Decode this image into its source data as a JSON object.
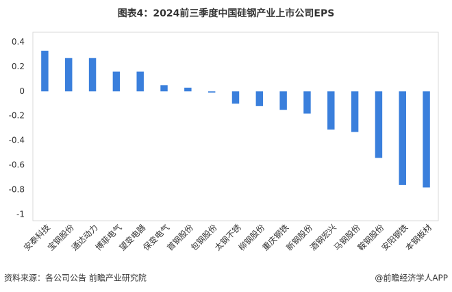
{
  "chart_data": {
    "type": "bar",
    "title": "图表4：2024前三季度中国硅钢产业上市公司EPS",
    "categories": [
      "安泰科技",
      "宝钢股份",
      "通达动力",
      "博菲电气",
      "望变电器",
      "保变电气",
      "首钢股份",
      "包钢股份",
      "太钢不锈",
      "柳钢股份",
      "重庆钢铁",
      "新钢股份",
      "酒钢宏兴",
      "马钢股份",
      "鞍钢股份",
      "安阳钢铁",
      "本钢板材"
    ],
    "values": [
      0.33,
      0.27,
      0.27,
      0.16,
      0.16,
      0.05,
      0.03,
      -0.01,
      -0.1,
      -0.12,
      -0.15,
      -0.18,
      -0.31,
      -0.33,
      -0.54,
      -0.76,
      -0.78
    ],
    "color": "#3a7fdc",
    "ylim": [
      -1.05,
      0.48
    ],
    "yticks": [
      0.4,
      0.2,
      0,
      -0.2,
      -0.4,
      -0.6,
      -0.8,
      -1
    ],
    "grid": false,
    "source": "资料来源：各公司公告 前瞻产业研究院",
    "credit": "@前瞻经济学人APP"
  }
}
